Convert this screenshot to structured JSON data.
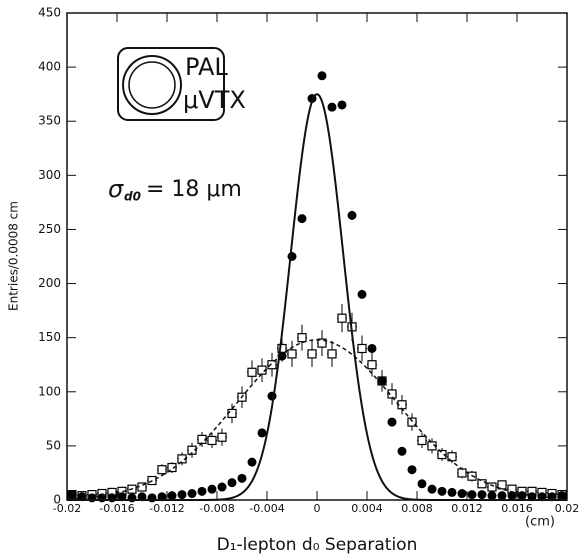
{
  "chart_data": {
    "type": "scatter",
    "ylabel": "Entries/0.0008 cm",
    "xlabel": "D₁-lepton d₀ Separation",
    "xunit": "(cm)",
    "logo": {
      "line1": "PAL",
      "line2": "μVTX"
    },
    "annotation": {
      "symbol": "σ",
      "subscript": "d0",
      "text": "= 18 μm"
    },
    "xlim": [
      -0.02,
      0.02
    ],
    "ylim": [
      0,
      450
    ],
    "xticks": [
      -0.02,
      -0.016,
      -0.012,
      -0.008,
      -0.004,
      0,
      0.004,
      0.008,
      0.012,
      0.016,
      0.02
    ],
    "yticks": [
      0,
      50,
      100,
      150,
      200,
      250,
      300,
      350,
      400,
      450
    ],
    "x": [
      -0.0196,
      -0.0188,
      -0.018,
      -0.0172,
      -0.0164,
      -0.0156,
      -0.0148,
      -0.014,
      -0.0132,
      -0.0124,
      -0.0116,
      -0.0108,
      -0.01,
      -0.0092,
      -0.0084,
      -0.0076,
      -0.0068,
      -0.006,
      -0.0052,
      -0.0044,
      -0.0036,
      -0.0028,
      -0.002,
      -0.0012,
      -0.0004,
      0.0004,
      0.0012,
      0.002,
      0.0028,
      0.0036,
      0.0044,
      0.0052,
      0.006,
      0.0068,
      0.0076,
      0.0084,
      0.0092,
      0.01,
      0.0108,
      0.0116,
      0.0124,
      0.0132,
      0.014,
      0.0148,
      0.0156,
      0.0164,
      0.0172,
      0.018,
      0.0188,
      0.0196
    ],
    "series": [
      {
        "marker": "filled-circle",
        "color": "#000000",
        "values": [
          5,
          3,
          2,
          2,
          2,
          3,
          2,
          3,
          2,
          3,
          4,
          5,
          6,
          8,
          10,
          12,
          16,
          20,
          35,
          62,
          96,
          133,
          225,
          260,
          371,
          392,
          363,
          365,
          263,
          190,
          140,
          110,
          72,
          45,
          28,
          15,
          10,
          8,
          7,
          6,
          5,
          5,
          4,
          4,
          4,
          4,
          3,
          3,
          3,
          4
        ]
      },
      {
        "marker": "open-square",
        "color": "#000000",
        "values": [
          5,
          4,
          5,
          6,
          7,
          8,
          10,
          12,
          18,
          28,
          30,
          38,
          46,
          56,
          55,
          58,
          80,
          95,
          118,
          120,
          125,
          140,
          135,
          150,
          135,
          145,
          135,
          168,
          160,
          140,
          125,
          110,
          98,
          88,
          72,
          55,
          50,
          42,
          40,
          25,
          22,
          15,
          12,
          14,
          10,
          8,
          8,
          7,
          6,
          5
        ],
        "errors": [
          2,
          2,
          2,
          2,
          3,
          3,
          3,
          3,
          4,
          5,
          5,
          6,
          7,
          7,
          7,
          8,
          9,
          10,
          11,
          11,
          11,
          12,
          12,
          12,
          12,
          12,
          12,
          13,
          13,
          12,
          11,
          10,
          10,
          9,
          8,
          7,
          7,
          6,
          6,
          5,
          5,
          4,
          3,
          4,
          3,
          3,
          3,
          3,
          2,
          2
        ]
      }
    ],
    "fits": [
      {
        "amplitude": 375,
        "mean": 0,
        "sigma": 0.0021,
        "style": "solid"
      },
      {
        "amplitude": 148,
        "mean": 0,
        "sigma": 0.0064,
        "style": "dashed"
      }
    ]
  }
}
